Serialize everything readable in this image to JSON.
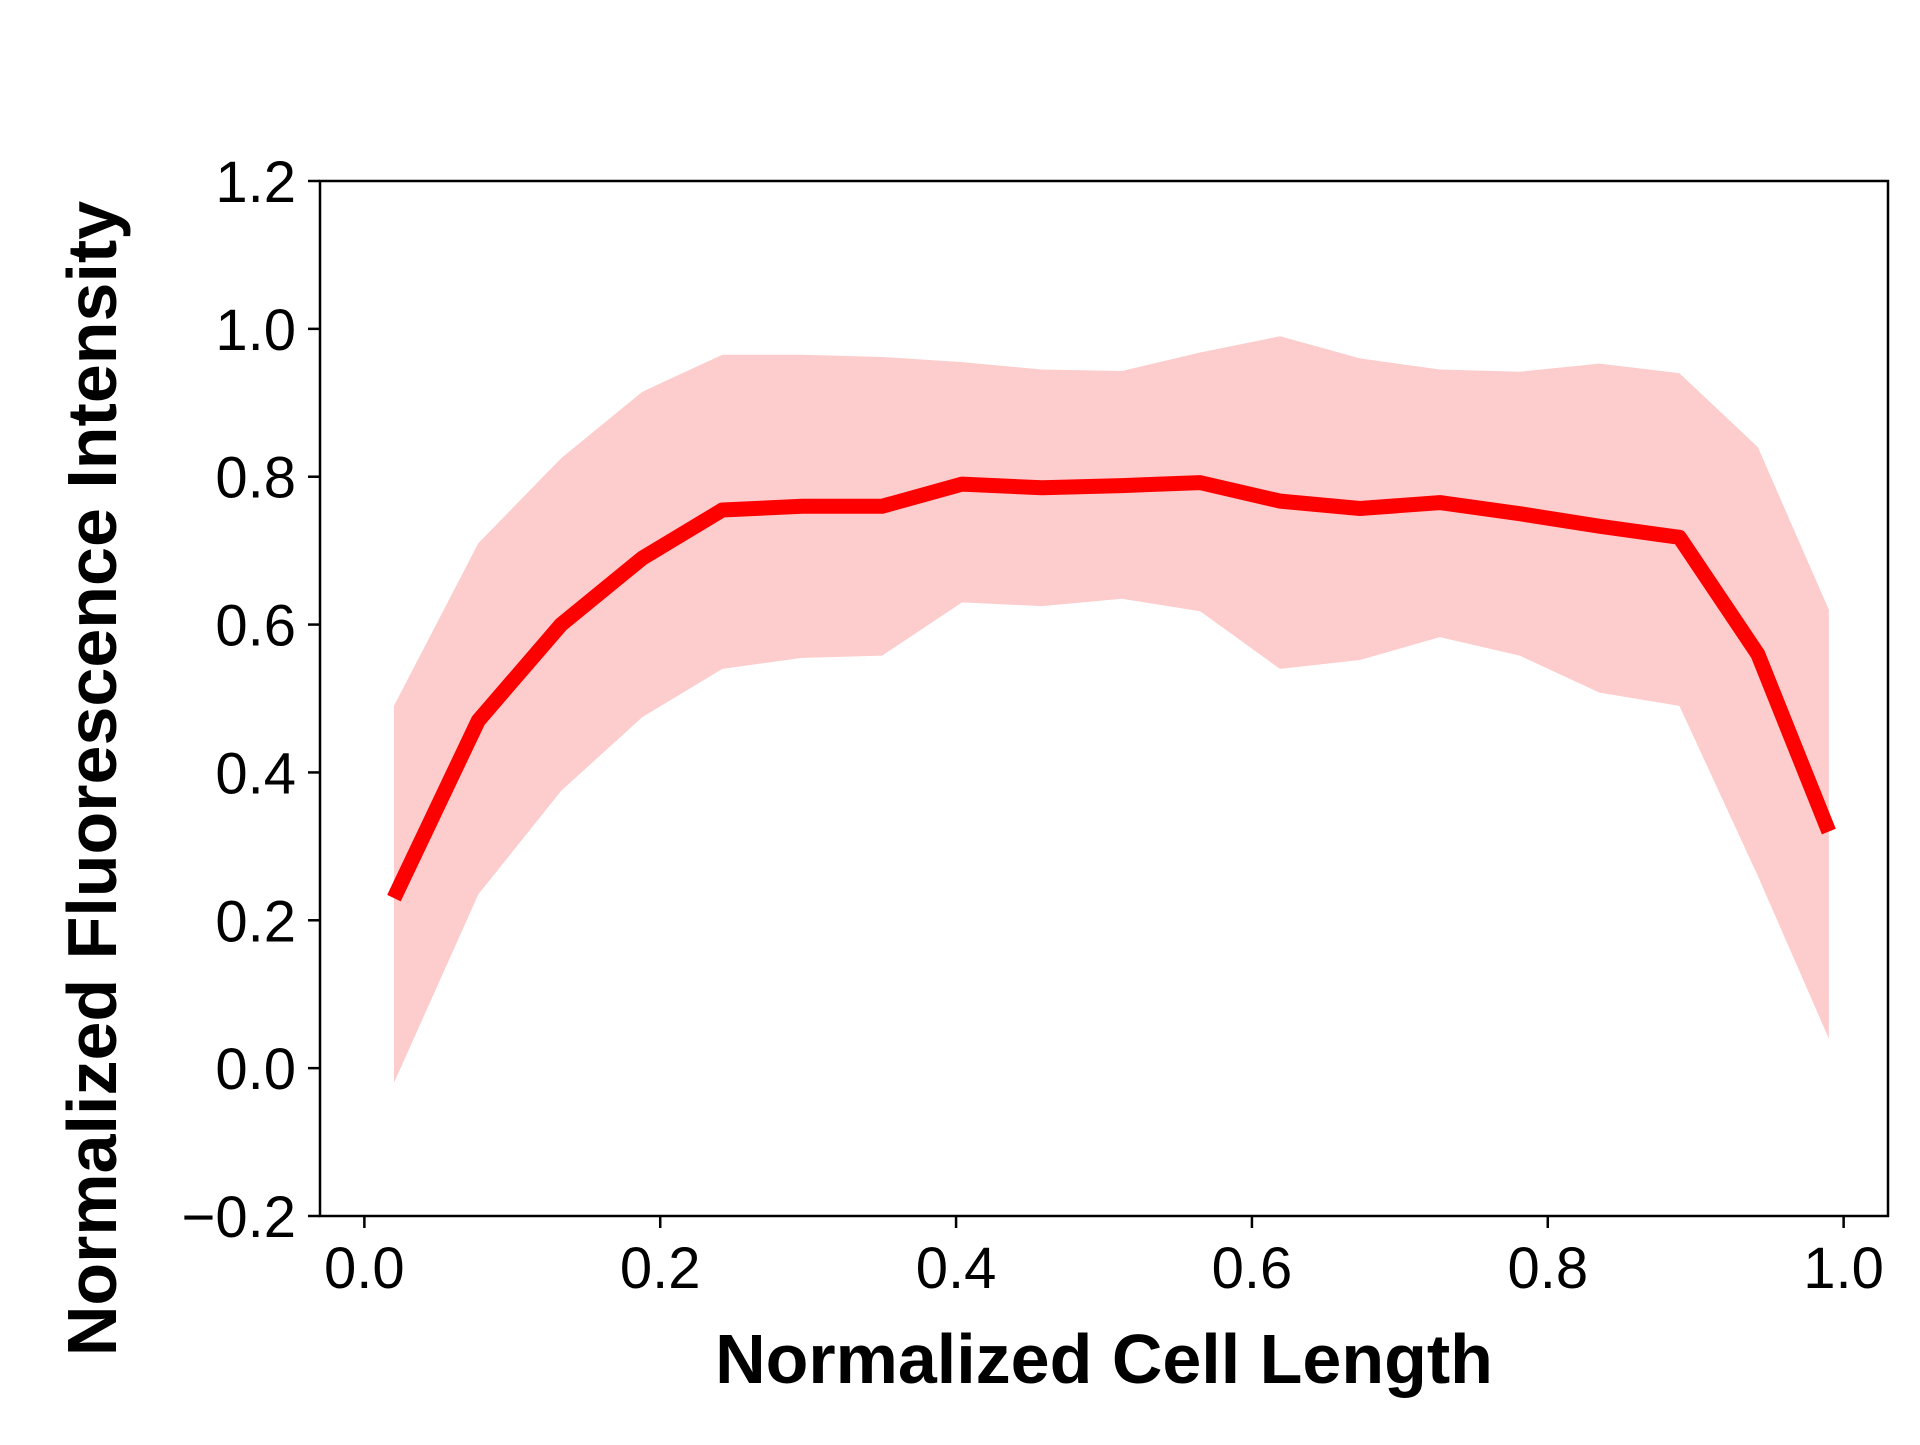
{
  "chart_data": {
    "type": "line",
    "title": "",
    "xlabel": "Normalized Cell Length",
    "ylabel": "Normalized Fluorescence Intensity",
    "xlim": [
      -0.03,
      1.03
    ],
    "ylim": [
      -0.2,
      1.2
    ],
    "xticks": [
      0.0,
      0.2,
      0.4,
      0.6,
      0.8,
      1.0
    ],
    "xtick_labels": [
      "0.0",
      "0.2",
      "0.4",
      "0.6",
      "0.8",
      "1.0"
    ],
    "yticks": [
      -0.2,
      0.0,
      0.2,
      0.4,
      0.6,
      0.8,
      1.0,
      1.2
    ],
    "ytick_labels": [
      "−0.2",
      "0.0",
      "0.2",
      "0.4",
      "0.6",
      "0.8",
      "1.0",
      "1.2"
    ],
    "grid": false,
    "legend": false,
    "series": [
      {
        "kind": "line",
        "color": "#ff0000",
        "x": [
          0.02,
          0.077,
          0.133,
          0.188,
          0.242,
          0.296,
          0.35,
          0.404,
          0.458,
          0.512,
          0.565,
          0.619,
          0.673,
          0.727,
          0.781,
          0.835,
          0.889,
          0.942,
          0.99
        ],
        "values": [
          0.23,
          0.47,
          0.6,
          0.69,
          0.755,
          0.76,
          0.76,
          0.79,
          0.785,
          0.788,
          0.792,
          0.767,
          0.757,
          0.765,
          0.75,
          0.733,
          0.718,
          0.56,
          0.32
        ]
      },
      {
        "kind": "band",
        "color": "#fdcccc",
        "x": [
          0.02,
          0.077,
          0.133,
          0.188,
          0.242,
          0.296,
          0.35,
          0.404,
          0.458,
          0.512,
          0.565,
          0.619,
          0.673,
          0.727,
          0.781,
          0.835,
          0.889,
          0.942,
          0.99
        ],
        "upper": [
          0.49,
          0.71,
          0.825,
          0.915,
          0.965,
          0.965,
          0.962,
          0.955,
          0.945,
          0.943,
          0.968,
          0.99,
          0.96,
          0.945,
          0.942,
          0.953,
          0.94,
          0.84,
          0.62
        ],
        "lower": [
          -0.02,
          0.235,
          0.375,
          0.475,
          0.54,
          0.555,
          0.558,
          0.63,
          0.625,
          0.635,
          0.618,
          0.54,
          0.552,
          0.583,
          0.558,
          0.508,
          0.49,
          0.26,
          0.04
        ]
      }
    ]
  }
}
